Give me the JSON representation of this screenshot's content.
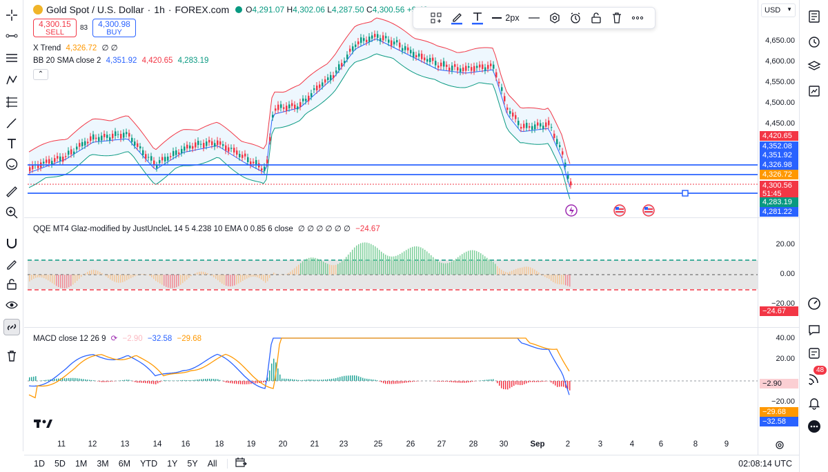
{
  "symbol": {
    "name": "Gold Spot / U.S. Dollar",
    "interval": "1h",
    "exchange": "FOREX.com",
    "open_label": "O",
    "open": "4,291.07",
    "high_label": "H",
    "high": "4,302.06",
    "low_label": "L",
    "low": "4,287.50",
    "close_label": "C",
    "close": "4,300.56",
    "change": "+9.49"
  },
  "trade": {
    "sell_price": "4,300.15",
    "sell_label": "SELL",
    "buy_price": "4,300.98",
    "buy_label": "BUY",
    "spread": "83"
  },
  "indicators": {
    "xtrend_label": "X Trend",
    "xtrend_value": "4,326.72",
    "xtrend_flags": "∅ ∅",
    "bb_label": "BB 20 SMA close 2",
    "bb_basis": "4,351.92",
    "bb_upper": "4,420.65",
    "bb_lower": "4,283.19",
    "qqe_label": "QQE MT4 Glaz-modified by JustUncleL 14 5 4.238 10 EMA 0 0.85 6 close",
    "qqe_flags": "∅ ∅ ∅ ∅ ∅ ∅",
    "qqe_value": "−24.67",
    "macd_label": "MACD close 12 26 9",
    "macd_hist": "−2.90",
    "macd_line": "−32.58",
    "macd_signal": "−29.68"
  },
  "price_axis": {
    "currency": "USD",
    "ticks": [
      "4,650.00",
      "4,600.00",
      "4,550.00",
      "4,500.00",
      "4,450.00"
    ],
    "tags": [
      {
        "text": "4,420.65",
        "color": "#f23645"
      },
      {
        "text": "4,352.08",
        "color": "#2962ff"
      },
      {
        "text": "4,351.92",
        "color": "#2962ff"
      },
      {
        "text": "4,326.98",
        "color": "#2962ff"
      },
      {
        "text": "4,326.72",
        "color": "#ff9800"
      },
      {
        "text": "4,300.56",
        "color": "#f23645"
      },
      {
        "text": "51:45",
        "color": "#f23645"
      },
      {
        "text": "4,283.19",
        "color": "#089981"
      },
      {
        "text": "4,281.22",
        "color": "#2962ff"
      }
    ],
    "qqe_ticks": [
      "20.00",
      "0.00",
      "−20.00"
    ],
    "qqe_tag": "−24.67",
    "macd_ticks": [
      "40.00",
      "20.00",
      "−20.00"
    ],
    "macd_tags": [
      {
        "text": "−2.90",
        "color": "#fbcfd3",
        "textcolor": "#131722"
      },
      {
        "text": "−29.68",
        "color": "#ff9800",
        "textcolor": "#ffffff"
      },
      {
        "text": "−32.58",
        "color": "#2962ff",
        "textcolor": "#ffffff"
      }
    ]
  },
  "time_axis": [
    "11",
    "12",
    "13",
    "14",
    "16",
    "18",
    "19",
    "20",
    "21",
    "23",
    "25",
    "26",
    "27",
    "28",
    "30",
    "Sep",
    "2",
    "3",
    "4",
    "6",
    "8",
    "9"
  ],
  "draw_toolbar": {
    "width_label": "2px"
  },
  "ranges": [
    "1D",
    "5D",
    "1M",
    "3M",
    "6M",
    "YTD",
    "1Y",
    "5Y",
    "All"
  ],
  "clock": "02:08:14 UTC",
  "notifications": "48",
  "colors": {
    "bull": "#089981",
    "bear": "#f23645",
    "accent": "#2962ff",
    "orange": "#ff9800"
  }
}
